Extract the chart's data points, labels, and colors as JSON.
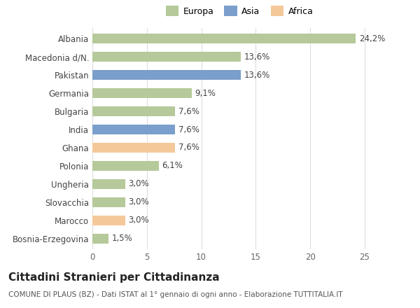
{
  "categories": [
    "Bosnia-Erzegovina",
    "Marocco",
    "Slovacchia",
    "Ungheria",
    "Polonia",
    "Ghana",
    "India",
    "Bulgaria",
    "Germania",
    "Pakistan",
    "Macedonia d/N.",
    "Albania"
  ],
  "values": [
    1.5,
    3.0,
    3.0,
    3.0,
    6.1,
    7.6,
    7.6,
    7.6,
    9.1,
    13.6,
    13.6,
    24.2
  ],
  "labels": [
    "1,5%",
    "3,0%",
    "3,0%",
    "3,0%",
    "6,1%",
    "7,6%",
    "7,6%",
    "7,6%",
    "9,1%",
    "13,6%",
    "13,6%",
    "24,2%"
  ],
  "continent": [
    "Europa",
    "Africa",
    "Europa",
    "Europa",
    "Europa",
    "Africa",
    "Asia",
    "Europa",
    "Europa",
    "Asia",
    "Europa",
    "Europa"
  ],
  "colors": {
    "Europa": "#b5c99a",
    "Asia": "#7b9fcc",
    "Africa": "#f5c89a"
  },
  "legend_labels": [
    "Europa",
    "Asia",
    "Africa"
  ],
  "legend_colors": [
    "#b5c99a",
    "#7b9fcc",
    "#f5c89a"
  ],
  "xlim": [
    0,
    27
  ],
  "xticks": [
    0,
    5,
    10,
    15,
    20,
    25
  ],
  "title": "Cittadini Stranieri per Cittadinanza",
  "subtitle": "COMUNE DI PLAUS (BZ) - Dati ISTAT al 1° gennaio di ogni anno - Elaborazione TUTTITALIA.IT",
  "background_color": "#ffffff",
  "grid_color": "#dddddd",
  "bar_height": 0.55,
  "label_fontsize": 8.5,
  "tick_fontsize": 8.5,
  "title_fontsize": 11,
  "subtitle_fontsize": 7.5
}
